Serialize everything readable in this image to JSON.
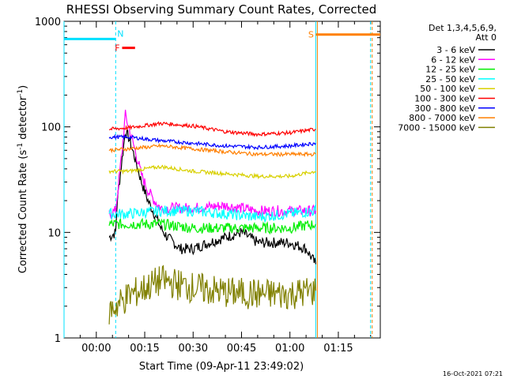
{
  "chart_data": {
    "type": "line",
    "title": "RHESSI Observing Summary Count Rates, Corrected",
    "xlabel": "Start Time (09-Apr-11 23:49:02)",
    "ylabel": "Corrected Count Rate (s",
    "ylabel_sup1": "-1",
    "ylabel_mid": " detector",
    "ylabel_sup2": "-1",
    "ylabel_end": ")",
    "y_scale": "log",
    "ylim": [
      1,
      1000
    ],
    "xlim_min": [
      -10,
      88
    ],
    "y_ticks": [
      "1",
      "10",
      "100",
      "1000"
    ],
    "x_ticks": [
      "00:00",
      "00:15",
      "00:30",
      "00:45",
      "01:00",
      "01:15"
    ],
    "x_tick_values_min": [
      0,
      15,
      30,
      45,
      60,
      75
    ],
    "footer_date": "16-Oct-2021 07:21",
    "legend": {
      "header_line1": "Det 1,3,4,5,6,9,",
      "header_line2": "Att 0",
      "entries": [
        {
          "label": "3 - 6 keV",
          "color": "#000000"
        },
        {
          "label": "6 - 12 keV",
          "color": "#ff00ff"
        },
        {
          "label": "12 - 25 keV",
          "color": "#00ee00"
        },
        {
          "label": "25 - 50 keV",
          "color": "#00ffff"
        },
        {
          "label": "50 - 100 keV",
          "color": "#d8d000"
        },
        {
          "label": "100 - 300 keV",
          "color": "#ff0000"
        },
        {
          "label": "300 - 800 keV",
          "color": "#0000ff"
        },
        {
          "label": "800 - 7000 keV",
          "color": "#ff7f00"
        },
        {
          "label": "7000 - 15000 keV",
          "color": "#808000"
        }
      ]
    },
    "series": [
      {
        "name": "3 - 6 keV",
        "color": "#000000",
        "x": [
          4,
          6,
          6.5,
          8,
          9,
          10,
          12,
          14,
          16,
          18,
          20,
          22,
          24,
          26,
          30,
          35,
          40,
          45,
          50,
          55,
          60,
          65,
          68
        ],
        "y": [
          9,
          10,
          20,
          50,
          90,
          80,
          50,
          30,
          20,
          15,
          11,
          9,
          8,
          7,
          7,
          8,
          9,
          10,
          8,
          8,
          8,
          7,
          5
        ]
      },
      {
        "name": "6 - 12 keV",
        "color": "#ff00ff",
        "x": [
          4,
          6,
          8,
          9,
          10,
          12,
          14,
          16,
          18,
          20,
          25,
          30,
          40,
          50,
          60,
          68
        ],
        "y": [
          15,
          16,
          60,
          130,
          100,
          60,
          35,
          25,
          20,
          17,
          17,
          17,
          18,
          16,
          16,
          16
        ]
      },
      {
        "name": "12 - 25 keV",
        "color": "#00ee00",
        "x": [
          4,
          10,
          20,
          30,
          40,
          50,
          60,
          68
        ],
        "y": [
          12,
          12,
          12,
          11,
          11,
          11,
          11,
          12
        ]
      },
      {
        "name": "25 - 50 keV",
        "color": "#00ffff",
        "x": [
          4,
          10,
          20,
          30,
          40,
          50,
          60,
          68
        ],
        "y": [
          15,
          15,
          16,
          16,
          15,
          14,
          15,
          16
        ]
      },
      {
        "name": "50 - 100 keV",
        "color": "#d8d000",
        "x": [
          4,
          10,
          20,
          30,
          40,
          50,
          60,
          68
        ],
        "y": [
          38,
          38,
          42,
          38,
          36,
          34,
          34,
          38
        ]
      },
      {
        "name": "100 - 300 keV",
        "color": "#ff0000",
        "x": [
          4,
          10,
          20,
          30,
          40,
          50,
          60,
          68
        ],
        "y": [
          95,
          98,
          108,
          102,
          90,
          85,
          88,
          95
        ]
      },
      {
        "name": "300 - 800 keV",
        "color": "#0000ff",
        "x": [
          4,
          10,
          20,
          30,
          40,
          50,
          60,
          68
        ],
        "y": [
          80,
          80,
          74,
          70,
          66,
          64,
          66,
          70
        ]
      },
      {
        "name": "800 - 7000 keV",
        "color": "#ff7f00",
        "x": [
          4,
          10,
          20,
          30,
          40,
          50,
          60,
          68
        ],
        "y": [
          60,
          62,
          66,
          62,
          58,
          55,
          55,
          55
        ]
      },
      {
        "name": "7000 - 15000 keV",
        "color": "#808000",
        "x": [
          4,
          10,
          20,
          30,
          40,
          50,
          60,
          68
        ],
        "y": [
          1.8,
          2.5,
          3.5,
          3,
          2.7,
          2.6,
          2.6,
          2.8
        ]
      }
    ],
    "markers": [
      {
        "label": "N",
        "color": "#00e0ff",
        "x_min": [
          6,
          6
        ],
        "y_level": 680,
        "span_min": [
          -10,
          6
        ]
      },
      {
        "label": "F",
        "color": "#ff0000",
        "x_min": [
          8,
          12
        ],
        "y_level": 560
      },
      {
        "label": "S",
        "color": "#ff8000",
        "x_min": [
          68,
          88
        ],
        "y_level": 750
      }
    ],
    "vertical_lines": [
      {
        "x_min": -10,
        "color": "#00e0ff",
        "style": "solid"
      },
      {
        "x_min": 6,
        "color": "#00e0ff",
        "style": "dashed"
      },
      {
        "x_min": 68,
        "color": "#00e0ff",
        "style": "solid"
      },
      {
        "x_min": 68.5,
        "color": "#ff8000",
        "style": "solid"
      },
      {
        "x_min": 85,
        "color": "#00e0ff",
        "style": "dashed"
      },
      {
        "x_min": 85.5,
        "color": "#ff8000",
        "style": "dashed"
      }
    ]
  }
}
